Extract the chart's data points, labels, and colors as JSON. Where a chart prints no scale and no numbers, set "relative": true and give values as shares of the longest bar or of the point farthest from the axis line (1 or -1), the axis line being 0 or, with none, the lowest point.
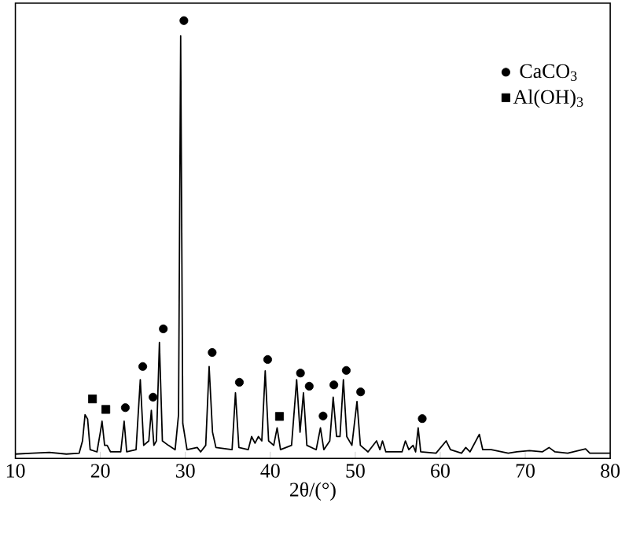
{
  "chart_data": {
    "type": "line",
    "relative": true,
    "xlabel": "2θ/(°)",
    "xlim": [
      10,
      80
    ],
    "xticks": [
      10,
      20,
      30,
      40,
      50,
      60,
      70,
      80
    ],
    "legend": "top right",
    "grid": false,
    "series": [
      {
        "color": "#000000",
        "marker": "none",
        "x": [
          10,
          12,
          14,
          16,
          17.5,
          17.9,
          18.2,
          18.5,
          18.8,
          19.6,
          20.0,
          20.2,
          20.5,
          20.8,
          21.2,
          22.4,
          22.8,
          23.1,
          24.2,
          24.7,
          25.1,
          25.7,
          26.0,
          26.3,
          26.6,
          26.95,
          27.3,
          28.0,
          28.8,
          29.2,
          29.45,
          29.7,
          30.2,
          31.4,
          31.8,
          32.4,
          32.8,
          33.2,
          33.6,
          35.5,
          35.9,
          36.3,
          37.4,
          37.8,
          38.2,
          38.6,
          39.0,
          39.4,
          39.8,
          40.4,
          40.8,
          41.2,
          42.5,
          43.1,
          43.5,
          43.9,
          44.3,
          45.4,
          45.9,
          46.3,
          47.0,
          47.4,
          47.8,
          48.2,
          48.6,
          49.0,
          49.6,
          50.2,
          50.6,
          51.5,
          52.5,
          52.9,
          53.2,
          53.6,
          55.5,
          55.9,
          56.3,
          56.8,
          57.1,
          57.4,
          57.7,
          59.5,
          60.7,
          61.2,
          62.5,
          63.0,
          63.5,
          64.6,
          65.0,
          66.0,
          68,
          69,
          70.5,
          72,
          72.8,
          73.5,
          75,
          77.1,
          77.6,
          80
        ],
        "values": [
          0.01,
          0.012,
          0.014,
          0.01,
          0.012,
          0.04,
          0.1,
          0.09,
          0.02,
          0.015,
          0.06,
          0.085,
          0.03,
          0.03,
          0.015,
          0.015,
          0.085,
          0.015,
          0.02,
          0.18,
          0.03,
          0.04,
          0.11,
          0.03,
          0.04,
          0.265,
          0.04,
          0.03,
          0.02,
          0.1,
          0.965,
          0.08,
          0.02,
          0.025,
          0.015,
          0.03,
          0.21,
          0.06,
          0.025,
          0.02,
          0.15,
          0.025,
          0.02,
          0.05,
          0.035,
          0.05,
          0.04,
          0.2,
          0.04,
          0.03,
          0.07,
          0.02,
          0.03,
          0.18,
          0.06,
          0.15,
          0.03,
          0.02,
          0.07,
          0.02,
          0.04,
          0.14,
          0.05,
          0.05,
          0.18,
          0.05,
          0.03,
          0.13,
          0.03,
          0.015,
          0.04,
          0.02,
          0.04,
          0.015,
          0.015,
          0.04,
          0.02,
          0.03,
          0.015,
          0.07,
          0.015,
          0.012,
          0.04,
          0.02,
          0.012,
          0.025,
          0.015,
          0.055,
          0.02,
          0.02,
          0.012,
          0.015,
          0.018,
          0.015,
          0.025,
          0.015,
          0.012,
          0.022,
          0.012,
          0.012
        ]
      },
      {
        "type": "scatter",
        "name": "CaCO$_{3}$",
        "color": "#000000",
        "marker": "circle",
        "x": [
          22.94,
          24.99,
          26.2,
          27.41,
          29.83,
          33.16,
          36.36,
          39.69,
          43.55,
          44.58,
          46.21,
          47.48,
          48.94,
          50.63,
          57.88
        ],
        "values": [
          0.116,
          0.21,
          0.14,
          0.296,
          1.0,
          0.242,
          0.174,
          0.226,
          0.195,
          0.165,
          0.097,
          0.168,
          0.201,
          0.152,
          0.091
        ]
      },
      {
        "type": "scatter",
        "name": "Al(OH)$_{3}$",
        "color": "#000000",
        "marker": "square",
        "x": [
          19.07,
          20.64,
          41.08
        ],
        "values": [
          0.136,
          0.112,
          0.096
        ]
      }
    ]
  }
}
